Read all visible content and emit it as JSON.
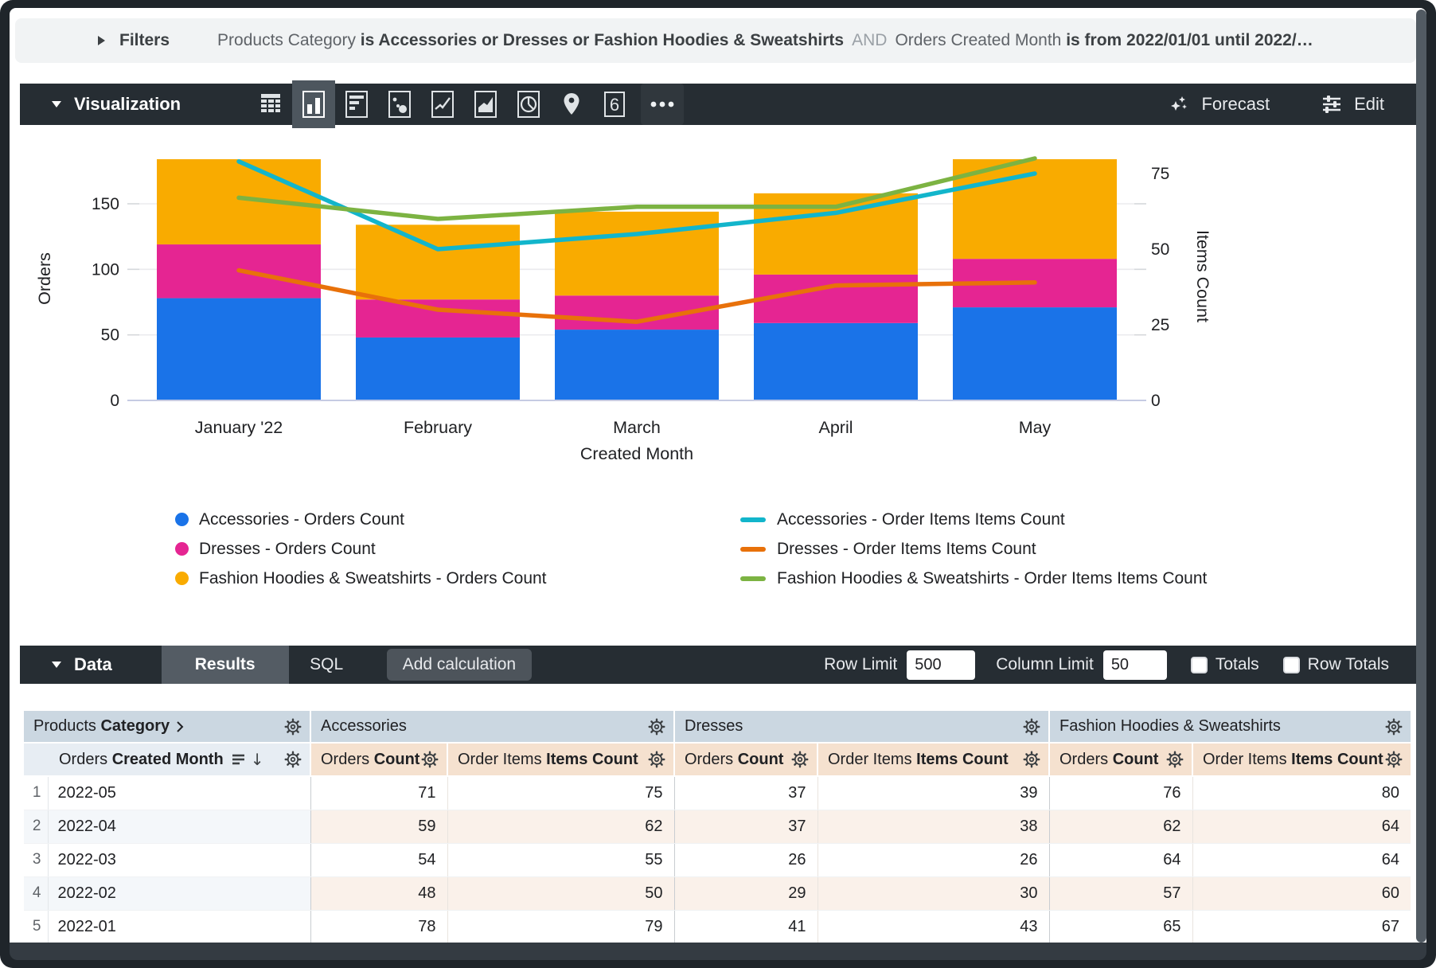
{
  "filters": {
    "title": "Filters",
    "p1": "Products Category ",
    "p2": "is Accessories or Dresses or Fashion Hoodies & Sweatshirts",
    "p3": "AND",
    "p4": "Orders Created Month ",
    "p5": "is from 2022/01/01 until 2022/…"
  },
  "viz": {
    "title": "Visualization",
    "forecast_label": "Forecast",
    "edit_label": "Edit",
    "single_value_glyph": "6",
    "selected_chart_type": "column"
  },
  "data_panel": {
    "title": "Data",
    "tab_results": "Results",
    "tab_sql": "SQL",
    "add_calculation_label": "Add calculation",
    "row_limit_label": "Row Limit",
    "row_limit_value": "500",
    "column_limit_label": "Column Limit",
    "column_limit_value": "50",
    "totals_label": "Totals",
    "row_totals_label": "Row Totals",
    "totals_checked": false,
    "row_totals_checked": false
  },
  "chart_data": {
    "type": "combo-stacked-bar-line",
    "categories": [
      "January '22",
      "February",
      "March",
      "April",
      "May"
    ],
    "x_axis_title": "Created Month",
    "left_axis": {
      "title": "Orders",
      "ticks": [
        0,
        50,
        100,
        150
      ],
      "max": 202
    },
    "right_axis": {
      "title": "Items Count",
      "ticks": [
        0,
        25,
        50,
        75
      ],
      "max": 88
    },
    "bar_series": [
      {
        "name": "Accessories - Orders Count",
        "color": "#1a73e8",
        "values": [
          78,
          48,
          54,
          59,
          71
        ]
      },
      {
        "name": "Dresses - Orders Count",
        "color": "#e52592",
        "values": [
          41,
          29,
          26,
          37,
          37
        ]
      },
      {
        "name": "Fashion Hoodies & Sweatshirts - Orders Count",
        "color": "#f9ab00",
        "values": [
          65,
          57,
          64,
          62,
          76
        ]
      }
    ],
    "line_series": [
      {
        "name": "Accessories - Order Items Items Count",
        "color": "#12b5cb",
        "values": [
          79,
          50,
          55,
          62,
          75
        ]
      },
      {
        "name": "Dresses - Order Items Items Count",
        "color": "#e8710a",
        "values": [
          43,
          30,
          26,
          38,
          39
        ]
      },
      {
        "name": "Fashion Hoodies & Sweatshirts - Order Items Items Count",
        "color": "#7cb342",
        "values": [
          67,
          60,
          64,
          64,
          80
        ]
      }
    ],
    "legend_position": "bottom"
  },
  "table": {
    "row1": {
      "dim_prefix": "Products ",
      "dim_bold": "Category",
      "groups": [
        "Accessories",
        "Dresses",
        "Fashion Hoodies & Sweatshirts"
      ]
    },
    "row2": {
      "dim_prefix": "Orders ",
      "dim_bold": "Created Month",
      "count_prefix": "Orders ",
      "count_bold": "Count",
      "items_prefix": "Order Items ",
      "items_bold": "Items Count"
    },
    "rows": [
      {
        "n": "1",
        "month": "2022-05",
        "values": [
          71,
          75,
          37,
          39,
          76,
          80
        ]
      },
      {
        "n": "2",
        "month": "2022-04",
        "values": [
          59,
          62,
          37,
          38,
          62,
          64
        ]
      },
      {
        "n": "3",
        "month": "2022-03",
        "values": [
          54,
          55,
          26,
          26,
          64,
          64
        ]
      },
      {
        "n": "4",
        "month": "2022-02",
        "values": [
          48,
          50,
          29,
          30,
          57,
          60
        ]
      },
      {
        "n": "5",
        "month": "2022-01",
        "values": [
          78,
          79,
          41,
          43,
          65,
          67
        ]
      }
    ]
  }
}
